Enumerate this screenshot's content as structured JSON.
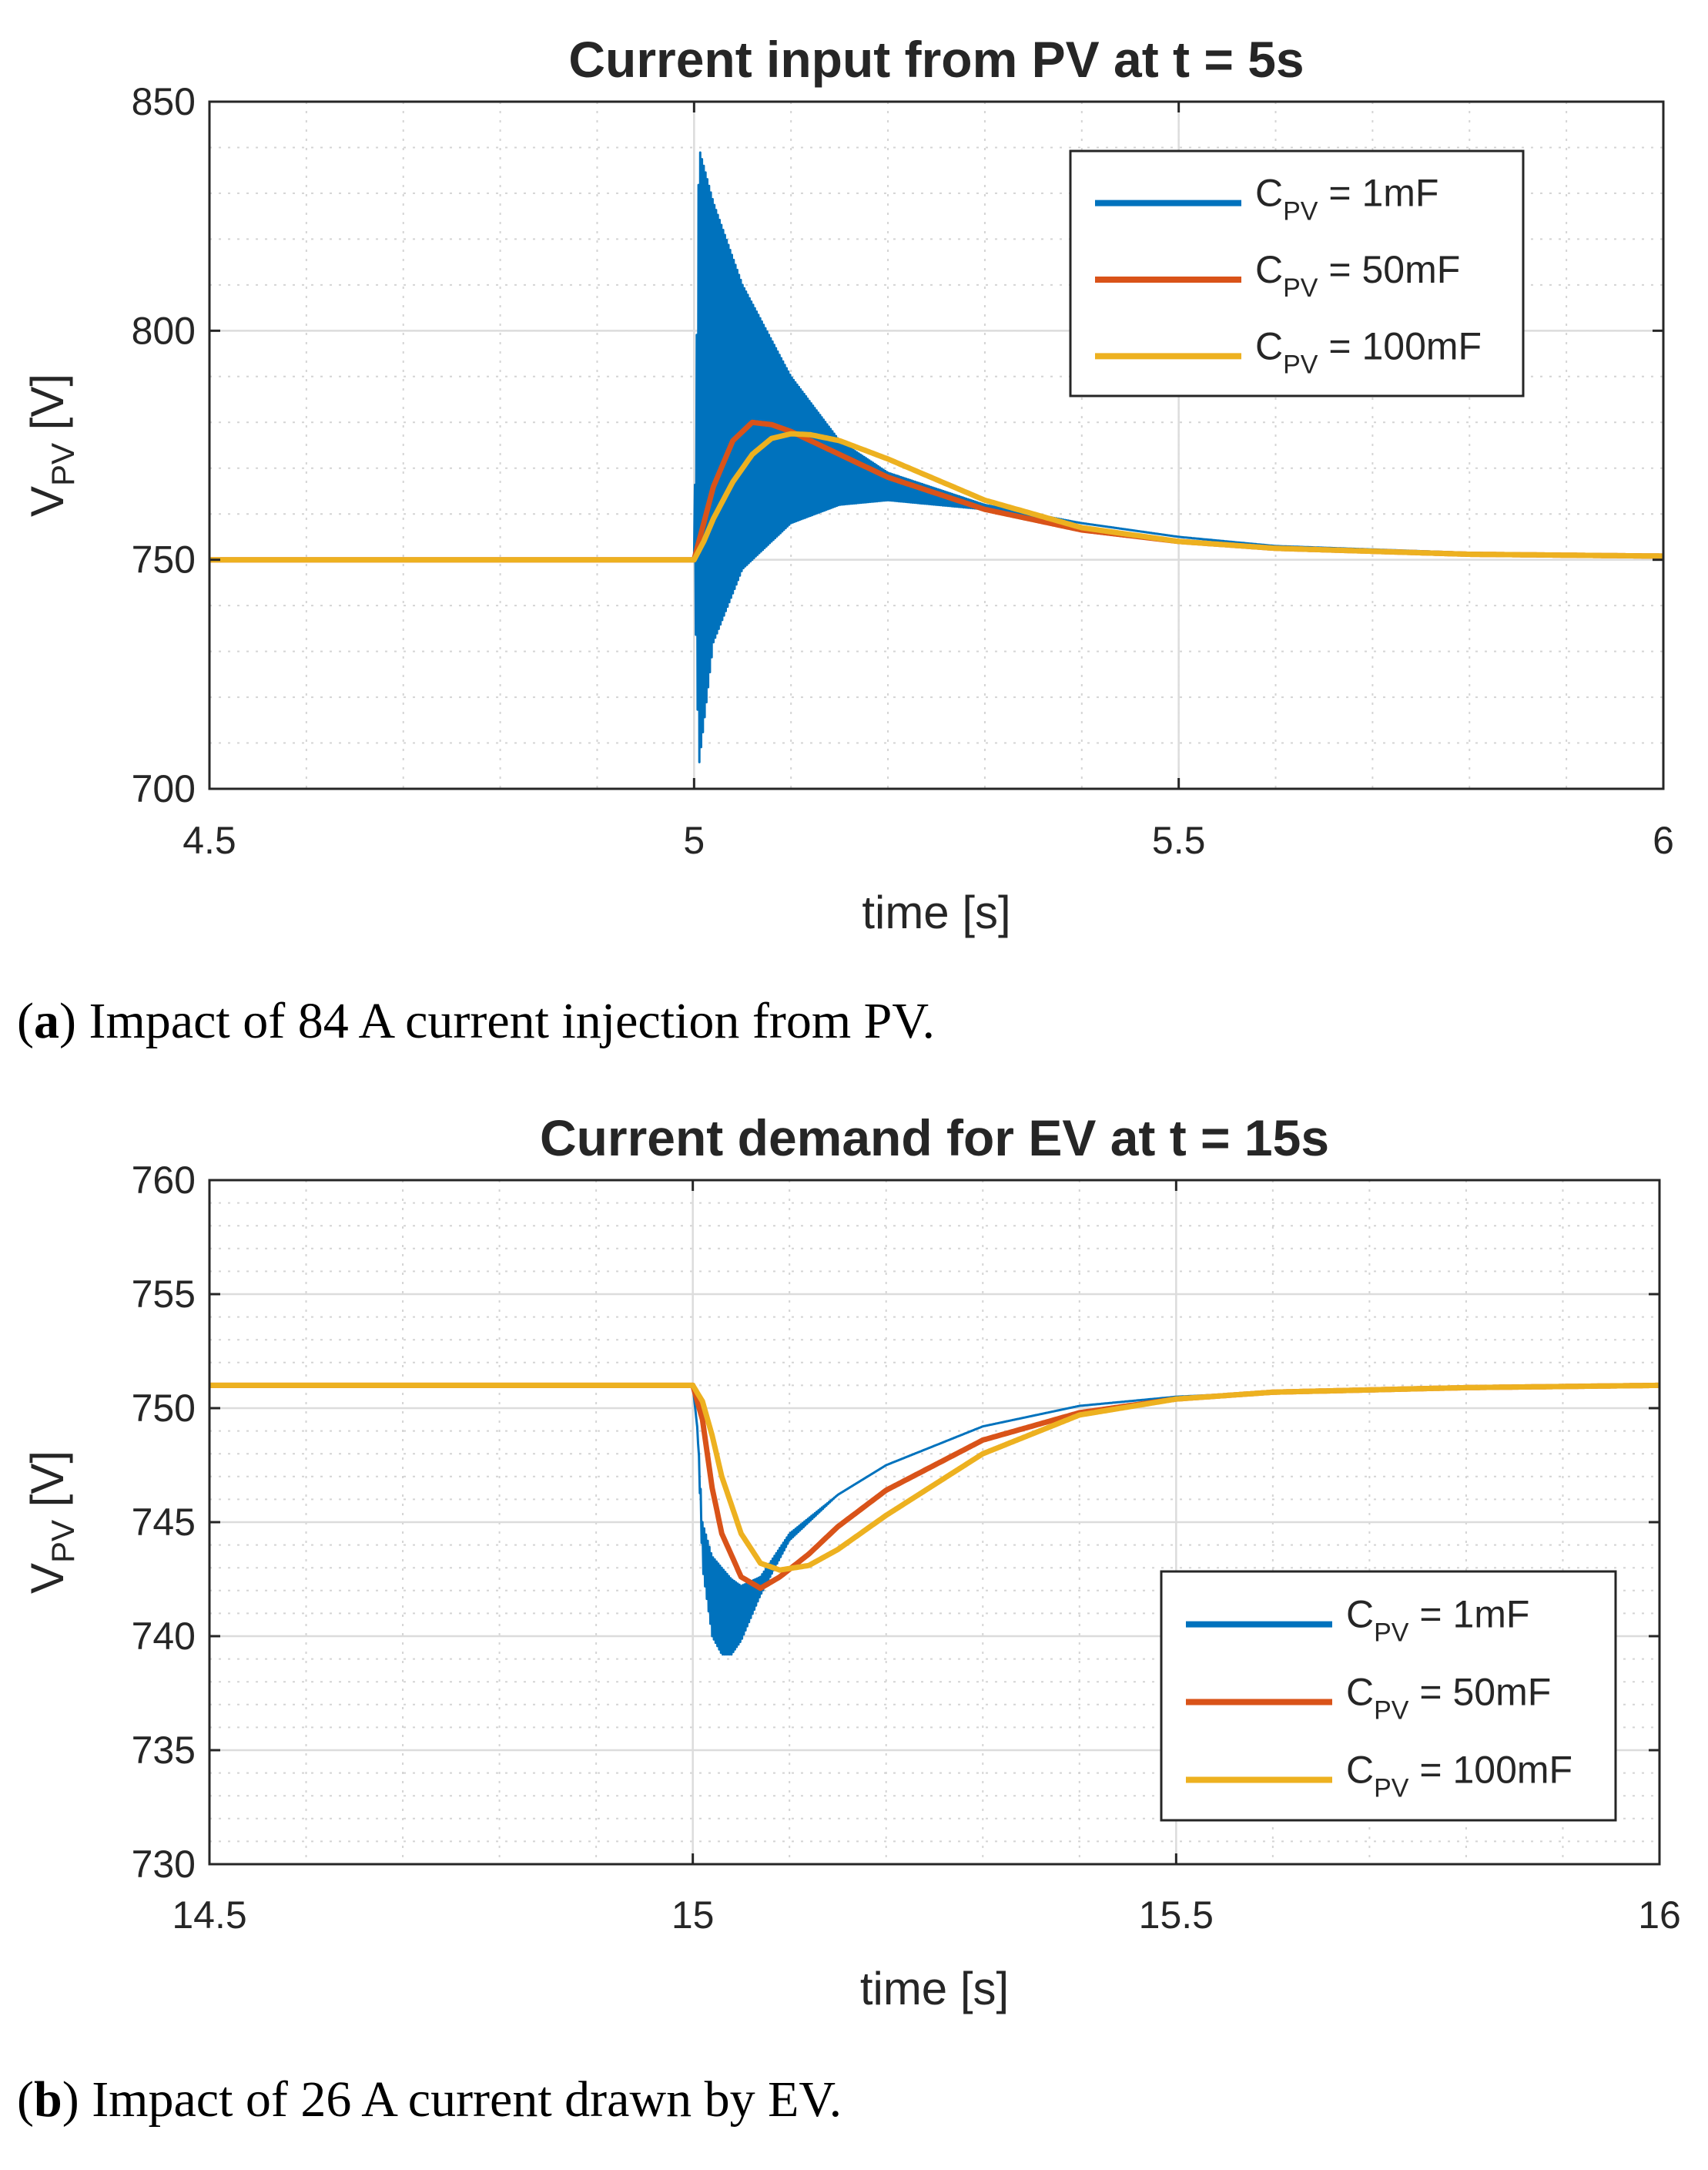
{
  "captions": [
    {
      "letter": "a",
      "text": "Impact of 84 A current injection from PV."
    },
    {
      "letter": "b",
      "text": "Impact of 26 A current drawn by EV."
    }
  ],
  "chart_data": [
    {
      "type": "line",
      "title": "Current input from PV at t = 5s",
      "xlabel": "time [s]",
      "ylabel_main": "V",
      "ylabel_sub": "PV",
      "ylabel_unit": " [V]",
      "xlim": [
        4.5,
        6
      ],
      "ylim": [
        700,
        850
      ],
      "xticks": [
        4.5,
        5,
        5.5,
        6
      ],
      "xtick_labels": [
        "4.5",
        "5",
        "5.5",
        "6"
      ],
      "yticks": [
        700,
        750,
        800,
        850
      ],
      "ytick_labels": [
        "700",
        "750",
        "800",
        "850"
      ],
      "grid": true,
      "minor_grid": true,
      "legend_position": "top-right",
      "event_time": 5,
      "series": [
        {
          "name": "C_PV = 1mF",
          "legend_main": "C",
          "legend_sub": "PV",
          "legend_rest": " = 1mF",
          "color": "#0072BD",
          "kind": "oscillating",
          "x": [
            4.5,
            5.0,
            5.005,
            5.02,
            5.05,
            5.1,
            5.15,
            5.2,
            5.3,
            5.4,
            5.5,
            5.6,
            5.8,
            6.0
          ],
          "upper": [
            750,
            750,
            840,
            828,
            810,
            790,
            776,
            769,
            762,
            758,
            755,
            753,
            751.5,
            751
          ],
          "lower": [
            750,
            750,
            705,
            732,
            748,
            758,
            762,
            763,
            761,
            758,
            755,
            753,
            751.5,
            751
          ]
        },
        {
          "name": "C_PV = 50mF",
          "legend_main": "C",
          "legend_sub": "PV",
          "legend_rest": " = 50mF",
          "color": "#D95319",
          "kind": "line",
          "x": [
            4.5,
            5.0,
            5.01,
            5.02,
            5.04,
            5.06,
            5.08,
            5.1,
            5.15,
            5.2,
            5.3,
            5.4,
            5.5,
            5.6,
            5.8,
            6.0
          ],
          "y": [
            750,
            750,
            758,
            766,
            776,
            780,
            779.5,
            778,
            773,
            768,
            761,
            756.5,
            754,
            752.5,
            751.2,
            750.8
          ]
        },
        {
          "name": "C_PV = 100mF",
          "legend_main": "C",
          "legend_sub": "PV",
          "legend_rest": " = 100mF",
          "color": "#EDB120",
          "kind": "line",
          "x": [
            4.5,
            5.0,
            5.01,
            5.02,
            5.04,
            5.06,
            5.08,
            5.1,
            5.12,
            5.15,
            5.2,
            5.3,
            5.4,
            5.5,
            5.6,
            5.8,
            6.0
          ],
          "y": [
            750,
            750,
            754,
            759,
            767,
            773,
            776.5,
            777.5,
            777.3,
            776,
            772,
            763,
            757,
            754,
            752.5,
            751.2,
            750.8
          ]
        }
      ]
    },
    {
      "type": "line",
      "title": "Current demand for EV at t = 15s",
      "xlabel": "time [s]",
      "ylabel_main": "V",
      "ylabel_sub": "PV",
      "ylabel_unit": " [V]",
      "xlim": [
        14.5,
        16
      ],
      "ylim": [
        730,
        760
      ],
      "xticks": [
        14.5,
        15,
        15.5,
        16
      ],
      "xtick_labels": [
        "14.5",
        "15",
        "15.5",
        "16"
      ],
      "yticks": [
        730,
        735,
        740,
        745,
        750,
        755,
        760
      ],
      "ytick_labels": [
        "730",
        "735",
        "740",
        "745",
        "750",
        "755",
        "760"
      ],
      "grid": true,
      "minor_grid": true,
      "legend_position": "bottom-right",
      "event_time": 15,
      "series": [
        {
          "name": "C_PV = 1mF",
          "legend_main": "C",
          "legend_sub": "PV",
          "legend_rest": " = 1mF",
          "color": "#0072BD",
          "kind": "oscillating",
          "x": [
            14.5,
            15.0,
            15.005,
            15.01,
            15.02,
            15.03,
            15.04,
            15.05,
            15.07,
            15.1,
            15.15,
            15.2,
            15.3,
            15.4,
            15.5,
            15.6,
            15.8,
            16.0
          ],
          "upper": [
            751,
            751,
            749,
            745,
            743.5,
            743,
            742.5,
            742.2,
            742.6,
            744.5,
            746.2,
            747.5,
            749.2,
            750.1,
            750.5,
            750.7,
            750.9,
            751
          ],
          "lower": [
            751,
            751,
            749,
            743,
            740,
            739.2,
            739.2,
            739.8,
            741.8,
            744.2,
            746.2,
            747.5,
            749.2,
            750.1,
            750.5,
            750.7,
            750.9,
            751
          ]
        },
        {
          "name": "C_PV = 50mF",
          "legend_main": "C",
          "legend_sub": "PV",
          "legend_rest": " = 50mF",
          "color": "#D95319",
          "kind": "line",
          "x": [
            14.5,
            15.0,
            15.01,
            15.02,
            15.03,
            15.05,
            15.07,
            15.09,
            15.12,
            15.15,
            15.2,
            15.3,
            15.4,
            15.5,
            15.6,
            15.8,
            16.0
          ],
          "y": [
            751,
            751,
            749.5,
            746.5,
            744.5,
            742.6,
            742.1,
            742.6,
            743.6,
            744.8,
            746.4,
            748.6,
            749.8,
            750.4,
            750.7,
            750.9,
            751
          ]
        },
        {
          "name": "C_PV = 100mF",
          "legend_main": "C",
          "legend_sub": "PV",
          "legend_rest": " = 100mF",
          "color": "#EDB120",
          "kind": "line",
          "x": [
            14.5,
            15.0,
            15.01,
            15.02,
            15.03,
            15.05,
            15.07,
            15.09,
            15.12,
            15.15,
            15.2,
            15.3,
            15.4,
            15.5,
            15.6,
            15.8,
            16.0
          ],
          "y": [
            751,
            751,
            750.3,
            748.8,
            747,
            744.5,
            743.2,
            742.9,
            743.1,
            743.8,
            745.3,
            748.0,
            749.7,
            750.4,
            750.7,
            750.9,
            751
          ]
        }
      ]
    }
  ]
}
